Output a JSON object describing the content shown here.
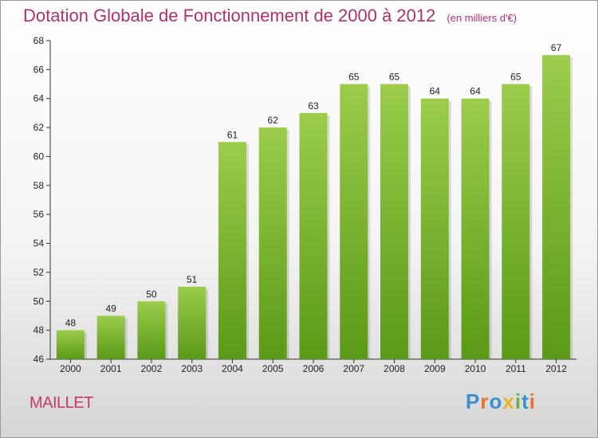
{
  "title": "Dotation Globale de Fonctionnement de 2000 à 2012",
  "unit_note": "(en milliers d'€)",
  "commune": "MAILLET",
  "brand": {
    "letters": [
      "P",
      "r",
      "o",
      "x",
      "i",
      "t",
      "i"
    ]
  },
  "colors": {
    "title": "#b0306a",
    "bar_top": "#9ccc4c",
    "bar_bottom": "#5a9a16",
    "brand": [
      "#3b8fd0",
      "#e8702a",
      "#3b8fd0",
      "#e8b22a",
      "#6ab04c",
      "#3b8fd0",
      "#e8702a"
    ]
  },
  "chart_data": {
    "type": "bar",
    "title": "Dotation Globale de Fonctionnement de 2000 à 2012",
    "subtitle": "(en milliers d'€)",
    "xlabel": "",
    "ylabel": "",
    "categories": [
      "2000",
      "2001",
      "2002",
      "2003",
      "2004",
      "2005",
      "2006",
      "2007",
      "2008",
      "2009",
      "2010",
      "2011",
      "2012"
    ],
    "values": [
      48,
      49,
      50,
      51,
      61,
      62,
      63,
      65,
      65,
      64,
      64,
      65,
      67
    ],
    "ylim": [
      46,
      68
    ],
    "yticks": [
      46,
      48,
      50,
      52,
      54,
      56,
      58,
      60,
      62,
      64,
      66,
      68
    ],
    "grid": false,
    "legend": "none"
  }
}
